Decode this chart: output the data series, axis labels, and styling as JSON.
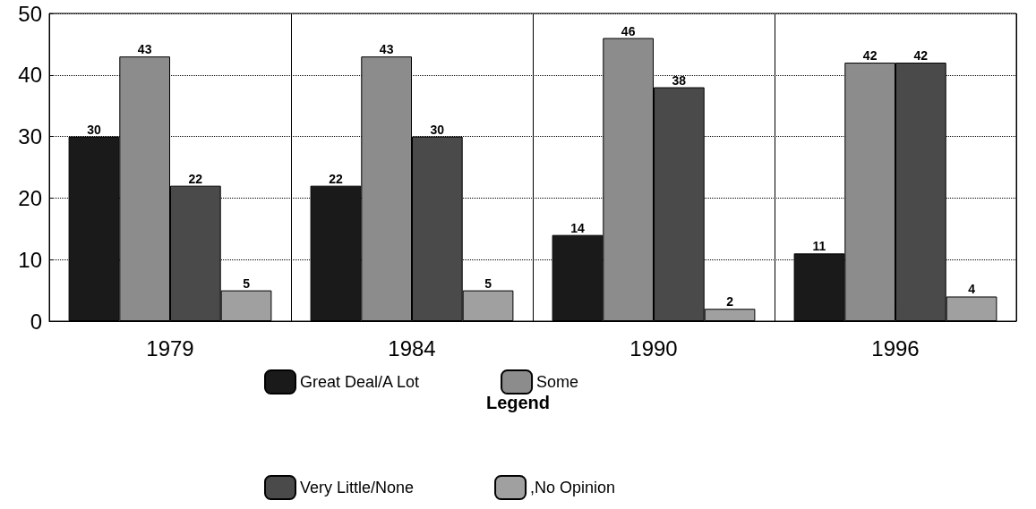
{
  "chart_data": {
    "type": "bar",
    "categories": [
      "1979",
      "1984",
      "1990",
      "1996"
    ],
    "series": [
      {
        "name": "Great Deal/A Lot",
        "color": "#1a1a1a",
        "values": [
          30,
          22,
          14,
          11
        ]
      },
      {
        "name": "Some",
        "color": "#8c8c8c",
        "values": [
          43,
          43,
          46,
          42
        ]
      },
      {
        "name": "Very Little/None",
        "color": "#4a4a4a",
        "values": [
          22,
          30,
          38,
          42
        ]
      },
      {
        "name": ",No Opinion",
        "color": "#a0a0a0",
        "values": [
          5,
          5,
          2,
          4
        ]
      }
    ],
    "ylim": [
      0,
      50
    ],
    "yticks": [
      0,
      10,
      20,
      30,
      40,
      50
    ],
    "grid": true,
    "data_labels": true,
    "legend": "bottom",
    "legend_title": "Legend"
  }
}
